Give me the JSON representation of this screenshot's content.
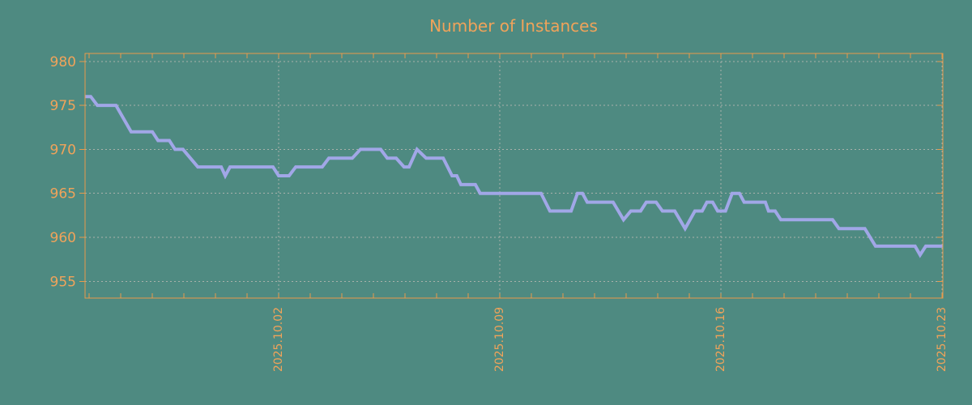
{
  "colors": {
    "background": "#4E8A81",
    "axis_border": "#E89B4C",
    "label_text": "#F0A35A",
    "gridline": "#A9B1AB",
    "series_line": "#A1A7E7"
  },
  "chart_data": {
    "type": "line",
    "title": "Number of Instances",
    "xlabel": "",
    "ylabel": "",
    "legend": "none",
    "grid": "dashed gridlines on both axes",
    "x_axis": {
      "unit": "date",
      "day0": "2025.09.26",
      "range_days": [
        -0.13,
        27.03
      ],
      "major_tick_day_offsets": [
        6,
        13,
        20,
        27
      ],
      "major_tick_labels": [
        "2025.10.02",
        "2025.10.09",
        "2025.10.16",
        "2025.10.23"
      ],
      "minor_tick_interval_days": 1,
      "label_rotation_deg": -90
    },
    "y_axis": {
      "range": [
        953.1,
        980.9
      ],
      "ticks": [
        955,
        960,
        965,
        970,
        975,
        980
      ],
      "tick_labels": [
        "955",
        "960",
        "965",
        "970",
        "975",
        "980"
      ]
    },
    "series": [
      {
        "name": "instances",
        "points_days_value": [
          [
            -0.13,
            976
          ],
          [
            0.05,
            976
          ],
          [
            0.26,
            975
          ],
          [
            0.85,
            975
          ],
          [
            1.33,
            972
          ],
          [
            2.0,
            972
          ],
          [
            2.18,
            971
          ],
          [
            2.54,
            971
          ],
          [
            2.72,
            970
          ],
          [
            2.97,
            970
          ],
          [
            3.44,
            968
          ],
          [
            4.18,
            968
          ],
          [
            4.31,
            967
          ],
          [
            4.46,
            968
          ],
          [
            5.82,
            968
          ],
          [
            6.0,
            967
          ],
          [
            6.33,
            967
          ],
          [
            6.54,
            968
          ],
          [
            7.38,
            968
          ],
          [
            7.59,
            969
          ],
          [
            8.33,
            969
          ],
          [
            8.59,
            970
          ],
          [
            9.23,
            970
          ],
          [
            9.44,
            969
          ],
          [
            9.72,
            969
          ],
          [
            9.97,
            968
          ],
          [
            10.13,
            968
          ],
          [
            10.38,
            970
          ],
          [
            10.67,
            969
          ],
          [
            11.21,
            969
          ],
          [
            11.49,
            967
          ],
          [
            11.64,
            967
          ],
          [
            11.77,
            966
          ],
          [
            12.23,
            966
          ],
          [
            12.38,
            965
          ],
          [
            14.31,
            965
          ],
          [
            14.59,
            963
          ],
          [
            15.26,
            963
          ],
          [
            15.46,
            965
          ],
          [
            15.62,
            965
          ],
          [
            15.77,
            964
          ],
          [
            16.59,
            964
          ],
          [
            16.92,
            962
          ],
          [
            17.15,
            963
          ],
          [
            17.46,
            963
          ],
          [
            17.64,
            964
          ],
          [
            17.95,
            964
          ],
          [
            18.15,
            963
          ],
          [
            18.54,
            963
          ],
          [
            18.87,
            961
          ],
          [
            19.18,
            963
          ],
          [
            19.41,
            963
          ],
          [
            19.56,
            964
          ],
          [
            19.74,
            964
          ],
          [
            19.9,
            963
          ],
          [
            20.15,
            963
          ],
          [
            20.36,
            965
          ],
          [
            20.59,
            965
          ],
          [
            20.74,
            964
          ],
          [
            21.41,
            964
          ],
          [
            21.51,
            963
          ],
          [
            21.72,
            963
          ],
          [
            21.9,
            962
          ],
          [
            23.54,
            962
          ],
          [
            23.74,
            961
          ],
          [
            24.56,
            961
          ],
          [
            24.9,
            959
          ],
          [
            26.15,
            959
          ],
          [
            26.31,
            958
          ],
          [
            26.49,
            959
          ],
          [
            27.03,
            959
          ]
        ]
      }
    ]
  }
}
